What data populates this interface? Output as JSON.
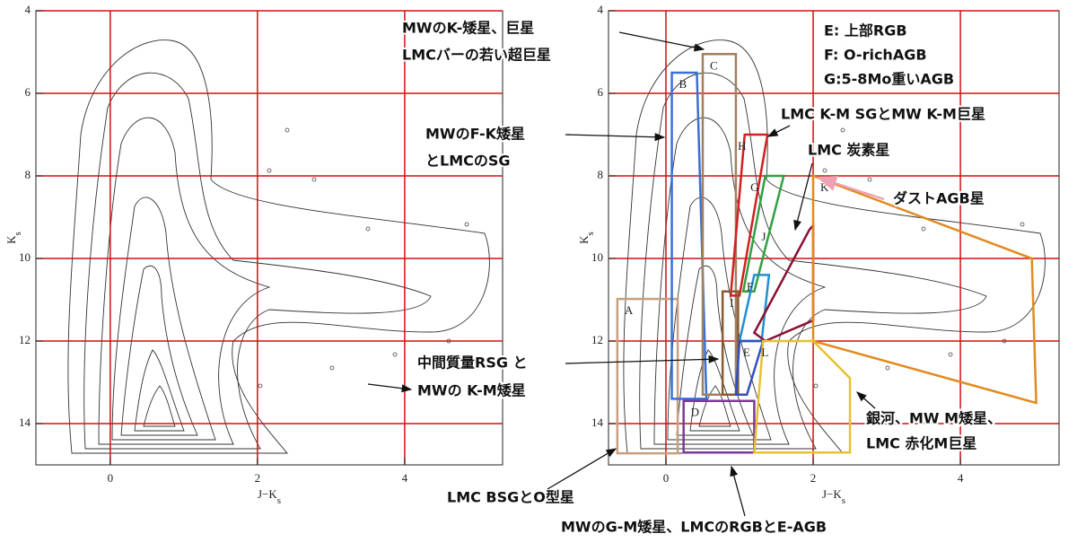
{
  "chart_data": [
    {
      "type": "contour",
      "xlabel": "J−Ks",
      "ylabel": "Ks",
      "xlim": [
        -1.01,
        5.33
      ],
      "ylim": [
        15,
        4
      ],
      "xticks": [
        0,
        2,
        4
      ],
      "yticks": [
        4,
        6,
        8,
        10,
        12,
        14
      ],
      "grid": true,
      "grid_color": "#d01010",
      "regions": []
    },
    {
      "type": "contour",
      "xlabel": "J−Ks",
      "ylabel": "Ks",
      "xlim": [
        -0.78,
        5.34
      ],
      "ylim": [
        15,
        4
      ],
      "xticks": [
        0,
        2,
        4
      ],
      "yticks": [
        4,
        6,
        8,
        10,
        12,
        14
      ],
      "grid": true,
      "grid_color": "#d01010",
      "regions": [
        {
          "label": "A",
          "color": "#c8a080",
          "points": [
            [
              -0.66,
              10.98
            ],
            [
              0.16,
              10.98
            ],
            [
              0.16,
              14.72
            ],
            [
              -0.66,
              14.72
            ]
          ]
        },
        {
          "label": "B",
          "color": "#3a6fd8",
          "points": [
            [
              0.08,
              5.5
            ],
            [
              0.42,
              5.5
            ],
            [
              0.55,
              13.4
            ],
            [
              0.08,
              13.4
            ]
          ]
        },
        {
          "label": "C",
          "color": "#a08060",
          "points": [
            [
              0.5,
              5.05
            ],
            [
              0.95,
              5.05
            ],
            [
              0.95,
              13.3
            ],
            [
              0.5,
              13.3
            ]
          ]
        },
        {
          "label": "D",
          "color": "#7a3a9a",
          "points": [
            [
              0.24,
              13.45
            ],
            [
              1.2,
              13.45
            ],
            [
              1.2,
              14.7
            ],
            [
              0.24,
              14.7
            ]
          ]
        },
        {
          "label": "H",
          "color": "#d02020",
          "points": [
            [
              1.07,
              7
            ],
            [
              1.38,
              7
            ],
            [
              1.0,
              10.9
            ],
            [
              0.88,
              10.9
            ]
          ]
        },
        {
          "label": "G",
          "color": "#30a040",
          "points": [
            [
              1.35,
              8
            ],
            [
              1.6,
              8
            ],
            [
              1.2,
              10.8
            ],
            [
              1.05,
              10.8
            ]
          ]
        },
        {
          "label": "F",
          "color": "#2090d0",
          "points": [
            [
              1.2,
              10.4
            ],
            [
              1.4,
              10.4
            ],
            [
              1.3,
              12
            ],
            [
              1.0,
              12
            ]
          ]
        },
        {
          "label": "I",
          "color": "#8a5a30",
          "points": [
            [
              0.77,
              10.8
            ],
            [
              0.98,
              10.8
            ],
            [
              0.98,
              13.3
            ],
            [
              0.77,
              13.3
            ]
          ]
        },
        {
          "label": "J",
          "color": "#8a1030",
          "points": [
            [
              2,
              9.2
            ],
            [
              2,
              11.5
            ],
            [
              1.35,
              12
            ],
            [
              1.2,
              11.8
            ],
            [
              1.95,
              9.3
            ]
          ]
        },
        {
          "label": "E",
          "color": "#3050c0",
          "points": [
            [
              1.0,
              12
            ],
            [
              1.32,
              12
            ],
            [
              1.1,
              13.3
            ],
            [
              0.95,
              13.3
            ]
          ]
        },
        {
          "label": "K",
          "color": "#e08a20",
          "points": [
            [
              2,
              8
            ],
            [
              4.97,
              10
            ],
            [
              5.03,
              13.5
            ],
            [
              2,
              12
            ]
          ]
        },
        {
          "label": "L",
          "color": "#e8c030",
          "points": [
            [
              1.32,
              12
            ],
            [
              2,
              12
            ],
            [
              2.5,
              12.9
            ],
            [
              2.5,
              14.7
            ],
            [
              1.2,
              14.7
            ]
          ]
        }
      ]
    }
  ],
  "annotations": [
    [
      "MWのK-矮星、巨星",
      "LMCバーの若い超巨星"
    ],
    [
      "E: 上部RGB",
      "F: O-richAGB",
      "G:5-8Mo重いAGB"
    ],
    [
      "LMC K-M SGとMW K-M巨星"
    ],
    [
      "MWのF-K矮星",
      "とLMCのSG"
    ],
    [
      "LMC 炭素星"
    ],
    [
      "ダストAGB星"
    ],
    [
      "中間質量RSG と",
      "MWの K-M矮星"
    ],
    [
      "銀河、MW M矮星、",
      "LMC 赤化M巨星"
    ],
    [
      "LMC BSGとO型星"
    ],
    [
      "MWのG-M矮星、LMCのRGBとE-AGB"
    ]
  ]
}
